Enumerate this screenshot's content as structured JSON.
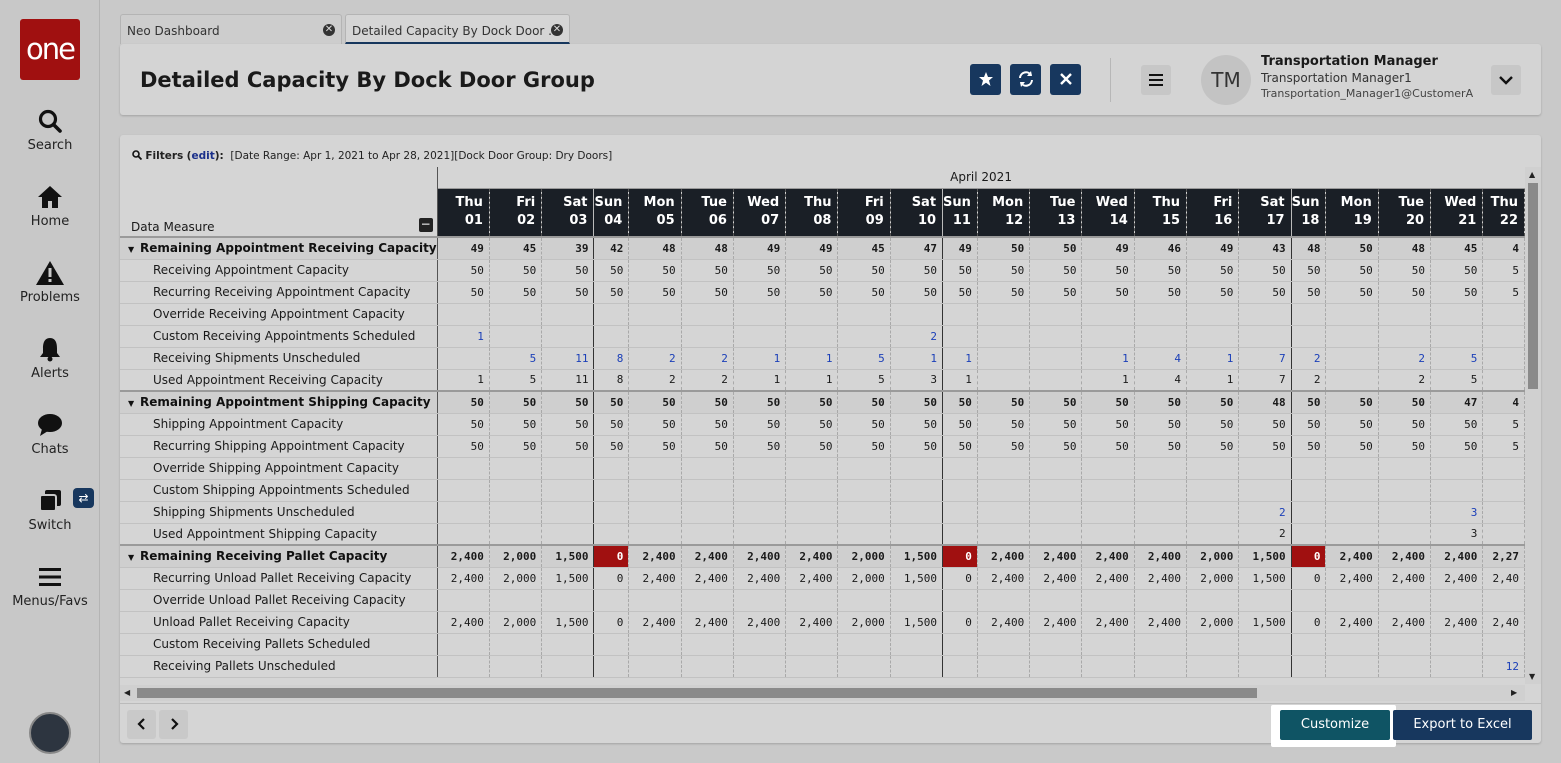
{
  "sidebar": {
    "logo": "one",
    "items": [
      {
        "label": "Search",
        "icon": "search-icon"
      },
      {
        "label": "Home",
        "icon": "home-icon"
      },
      {
        "label": "Problems",
        "icon": "warning-icon"
      },
      {
        "label": "Alerts",
        "icon": "bell-icon"
      },
      {
        "label": "Chats",
        "icon": "chat-icon"
      },
      {
        "label": "Switch",
        "icon": "switch-icon"
      },
      {
        "label": "Menus/Favs",
        "icon": "menu-icon"
      }
    ],
    "switch_badge": "⇄"
  },
  "tabs": [
    {
      "label": "Neo Dashboard"
    },
    {
      "label": "Detailed Capacity By Dock Door ..."
    }
  ],
  "header": {
    "title": "Detailed Capacity By Dock Door Group",
    "user": {
      "initials": "TM",
      "name": "Transportation Manager",
      "role": "Transportation Manager1",
      "email": "Transportation_Manager1@CustomerA"
    }
  },
  "filters": {
    "label": "Filters",
    "edit": "edit",
    "text": "[Date Range: Apr 1, 2021 to Apr 28, 2021][Dock Door Group: Dry Doors]"
  },
  "grid": {
    "month": "April 2021",
    "measure_header": "Data Measure",
    "days": [
      {
        "dow": "Thu",
        "d": "01"
      },
      {
        "dow": "Fri",
        "d": "02"
      },
      {
        "dow": "Sat",
        "d": "03"
      },
      {
        "dow": "Sun",
        "d": "04"
      },
      {
        "dow": "Mon",
        "d": "05"
      },
      {
        "dow": "Tue",
        "d": "06"
      },
      {
        "dow": "Wed",
        "d": "07"
      },
      {
        "dow": "Thu",
        "d": "08"
      },
      {
        "dow": "Fri",
        "d": "09"
      },
      {
        "dow": "Sat",
        "d": "10"
      },
      {
        "dow": "Sun",
        "d": "11"
      },
      {
        "dow": "Mon",
        "d": "12"
      },
      {
        "dow": "Tue",
        "d": "13"
      },
      {
        "dow": "Wed",
        "d": "14"
      },
      {
        "dow": "Thu",
        "d": "15"
      },
      {
        "dow": "Fri",
        "d": "16"
      },
      {
        "dow": "Sat",
        "d": "17"
      },
      {
        "dow": "Sun",
        "d": "18"
      },
      {
        "dow": "Mon",
        "d": "19"
      },
      {
        "dow": "Tue",
        "d": "20"
      },
      {
        "dow": "Wed",
        "d": "21"
      },
      {
        "dow": "Thu",
        "d": "22"
      }
    ],
    "rows": [
      {
        "label": "Remaining Appointment Receiving Capacity",
        "group": true,
        "values": [
          "49",
          "45",
          "39",
          "42",
          "48",
          "48",
          "49",
          "49",
          "45",
          "47",
          "49",
          "50",
          "50",
          "49",
          "46",
          "49",
          "43",
          "48",
          "50",
          "48",
          "45",
          "4"
        ]
      },
      {
        "label": "Receiving Appointment Capacity",
        "values": [
          "50",
          "50",
          "50",
          "50",
          "50",
          "50",
          "50",
          "50",
          "50",
          "50",
          "50",
          "50",
          "50",
          "50",
          "50",
          "50",
          "50",
          "50",
          "50",
          "50",
          "50",
          "5"
        ]
      },
      {
        "label": "Recurring Receiving Appointment Capacity",
        "values": [
          "50",
          "50",
          "50",
          "50",
          "50",
          "50",
          "50",
          "50",
          "50",
          "50",
          "50",
          "50",
          "50",
          "50",
          "50",
          "50",
          "50",
          "50",
          "50",
          "50",
          "50",
          "5"
        ]
      },
      {
        "label": "Override Receiving Appointment Capacity",
        "values": [
          "",
          "",
          "",
          "",
          "",
          "",
          "",
          "",
          "",
          "",
          "",
          "",
          "",
          "",
          "",
          "",
          "",
          "",
          "",
          "",
          "",
          ""
        ]
      },
      {
        "label": "Custom Receiving Appointments Scheduled",
        "link": true,
        "values": [
          "1",
          "",
          "",
          "",
          "",
          "",
          "",
          "",
          "",
          "2",
          "",
          "",
          "",
          "",
          "",
          "",
          "",
          "",
          "",
          "",
          "",
          ""
        ]
      },
      {
        "label": "Receiving Shipments Unscheduled",
        "link": true,
        "values": [
          "",
          "5",
          "11",
          "8",
          "2",
          "2",
          "1",
          "1",
          "5",
          "1",
          "1",
          "",
          "",
          "1",
          "4",
          "1",
          "7",
          "2",
          "",
          "2",
          "5",
          ""
        ]
      },
      {
        "label": "Used Appointment Receiving Capacity",
        "values": [
          "1",
          "5",
          "11",
          "8",
          "2",
          "2",
          "1",
          "1",
          "5",
          "3",
          "1",
          "",
          "",
          "1",
          "4",
          "1",
          "7",
          "2",
          "",
          "2",
          "5",
          ""
        ]
      },
      {
        "label": "Remaining Appointment Shipping Capacity",
        "group": true,
        "values": [
          "50",
          "50",
          "50",
          "50",
          "50",
          "50",
          "50",
          "50",
          "50",
          "50",
          "50",
          "50",
          "50",
          "50",
          "50",
          "50",
          "48",
          "50",
          "50",
          "50",
          "47",
          "4"
        ]
      },
      {
        "label": "Shipping Appointment Capacity",
        "values": [
          "50",
          "50",
          "50",
          "50",
          "50",
          "50",
          "50",
          "50",
          "50",
          "50",
          "50",
          "50",
          "50",
          "50",
          "50",
          "50",
          "50",
          "50",
          "50",
          "50",
          "50",
          "5"
        ]
      },
      {
        "label": "Recurring Shipping Appointment Capacity",
        "values": [
          "50",
          "50",
          "50",
          "50",
          "50",
          "50",
          "50",
          "50",
          "50",
          "50",
          "50",
          "50",
          "50",
          "50",
          "50",
          "50",
          "50",
          "50",
          "50",
          "50",
          "50",
          "5"
        ]
      },
      {
        "label": "Override Shipping Appointment Capacity",
        "values": [
          "",
          "",
          "",
          "",
          "",
          "",
          "",
          "",
          "",
          "",
          "",
          "",
          "",
          "",
          "",
          "",
          "",
          "",
          "",
          "",
          "",
          ""
        ]
      },
      {
        "label": "Custom Shipping Appointments Scheduled",
        "values": [
          "",
          "",
          "",
          "",
          "",
          "",
          "",
          "",
          "",
          "",
          "",
          "",
          "",
          "",
          "",
          "",
          "",
          "",
          "",
          "",
          "",
          ""
        ]
      },
      {
        "label": "Shipping Shipments Unscheduled",
        "link": true,
        "values": [
          "",
          "",
          "",
          "",
          "",
          "",
          "",
          "",
          "",
          "",
          "",
          "",
          "",
          "",
          "",
          "",
          "2",
          "",
          "",
          "",
          "3",
          ""
        ]
      },
      {
        "label": "Used Appointment Shipping Capacity",
        "values": [
          "",
          "",
          "",
          "",
          "",
          "",
          "",
          "",
          "",
          "",
          "",
          "",
          "",
          "",
          "",
          "",
          "2",
          "",
          "",
          "",
          "3",
          ""
        ]
      },
      {
        "label": "Remaining Receiving Pallet Capacity",
        "group": true,
        "values": [
          "2,400",
          "2,000",
          "1,500",
          "0",
          "2,400",
          "2,400",
          "2,400",
          "2,400",
          "2,000",
          "1,500",
          "0",
          "2,400",
          "2,400",
          "2,400",
          "2,400",
          "2,000",
          "1,500",
          "0",
          "2,400",
          "2,400",
          "2,400",
          "2,27"
        ],
        "red_cols": [
          3,
          10,
          17
        ]
      },
      {
        "label": "Recurring Unload Pallet Receiving Capacity",
        "values": [
          "2,400",
          "2,000",
          "1,500",
          "0",
          "2,400",
          "2,400",
          "2,400",
          "2,400",
          "2,000",
          "1,500",
          "0",
          "2,400",
          "2,400",
          "2,400",
          "2,400",
          "2,000",
          "1,500",
          "0",
          "2,400",
          "2,400",
          "2,400",
          "2,40"
        ]
      },
      {
        "label": "Override Unload Pallet Receiving Capacity",
        "values": [
          "",
          "",
          "",
          "",
          "",
          "",
          "",
          "",
          "",
          "",
          "",
          "",
          "",
          "",
          "",
          "",
          "",
          "",
          "",
          "",
          "",
          ""
        ]
      },
      {
        "label": "Unload Pallet Receiving Capacity",
        "values": [
          "2,400",
          "2,000",
          "1,500",
          "0",
          "2,400",
          "2,400",
          "2,400",
          "2,400",
          "2,000",
          "1,500",
          "0",
          "2,400",
          "2,400",
          "2,400",
          "2,400",
          "2,000",
          "1,500",
          "0",
          "2,400",
          "2,400",
          "2,400",
          "2,40"
        ]
      },
      {
        "label": "Custom Receiving Pallets Scheduled",
        "values": [
          "",
          "",
          "",
          "",
          "",
          "",
          "",
          "",
          "",
          "",
          "",
          "",
          "",
          "",
          "",
          "",
          "",
          "",
          "",
          "",
          "",
          ""
        ]
      },
      {
        "label": "Receiving Pallets Unscheduled",
        "link": true,
        "values": [
          "",
          "",
          "",
          "",
          "",
          "",
          "",
          "",
          "",
          "",
          "",
          "",
          "",
          "",
          "",
          "",
          "",
          "",
          "",
          "",
          "",
          "12"
        ]
      }
    ]
  },
  "footer": {
    "customize": "Customize",
    "export": "Export to Excel"
  }
}
